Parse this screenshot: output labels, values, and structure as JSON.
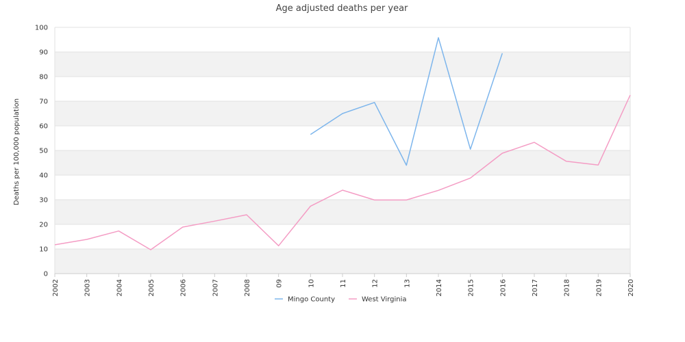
{
  "chart_data": {
    "type": "line",
    "title": "Age adjusted deaths per year",
    "xlabel": "",
    "ylabel": "Deaths per 100,000 population",
    "categories": [
      "2002",
      "2003",
      "2004",
      "2005",
      "2006",
      "2007",
      "2008",
      "09",
      "10",
      "11",
      "12",
      "13",
      "2014",
      "2015",
      "2016",
      "2017",
      "2018",
      "2019",
      "2020"
    ],
    "ylim": [
      0,
      100
    ],
    "yticks": [
      0,
      10,
      20,
      30,
      40,
      50,
      60,
      70,
      80,
      90,
      100
    ],
    "grid": "alternating horizontal bands",
    "legend_position": "bottom-center",
    "series": [
      {
        "name": "Mingo County",
        "color": "#7cb5ec",
        "values": [
          null,
          null,
          null,
          null,
          null,
          null,
          null,
          null,
          56.5,
          65.0,
          69.5,
          44.0,
          95.8,
          50.5,
          89.5,
          null,
          null,
          null,
          null
        ]
      },
      {
        "name": "West Virginia",
        "color": "#f49cc4",
        "values": [
          11.7,
          13.9,
          17.3,
          9.7,
          18.9,
          21.3,
          23.9,
          11.3,
          27.4,
          33.9,
          29.9,
          29.9,
          33.8,
          38.8,
          48.9,
          53.3,
          45.6,
          44.1,
          72.5
        ]
      }
    ]
  }
}
